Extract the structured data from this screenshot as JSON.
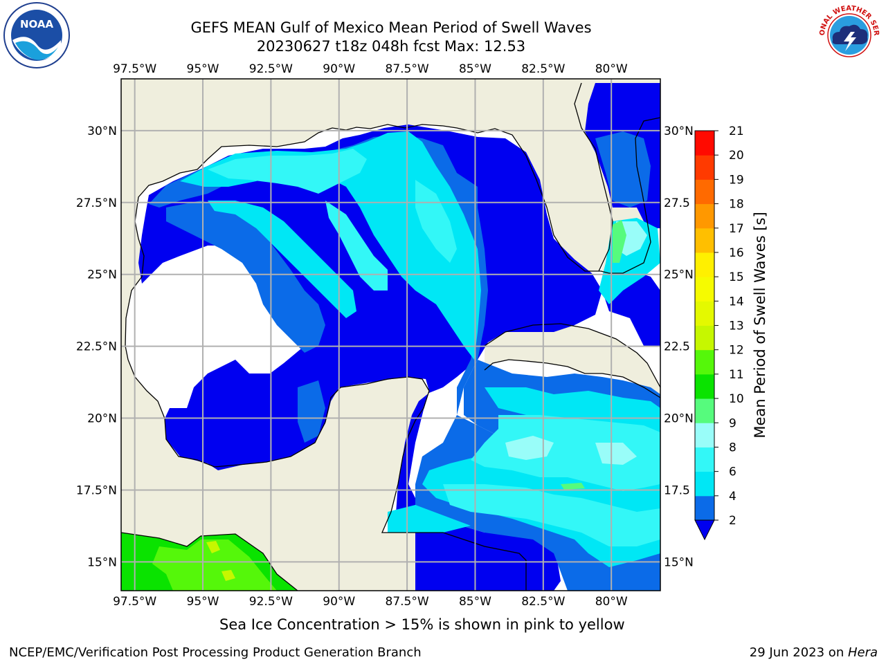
{
  "header": {
    "title_line1": "GEFS MEAN Gulf of Mexico Mean Period of Swell Waves",
    "title_line2": "20230627 t18z 048h fcst   Max: 12.53"
  },
  "map": {
    "lon_labels": [
      "97.5°W",
      "95°W",
      "92.5°W",
      "90°W",
      "87.5°W",
      "85°W",
      "82.5°W",
      "80°W"
    ],
    "lon_values": [
      -97.5,
      -95,
      -92.5,
      -90,
      -87.5,
      -85,
      -82.5,
      -80
    ],
    "lat_labels": [
      "30°N",
      "27.5°N",
      "25°N",
      "22.5°N",
      "20°N",
      "17.5°N",
      "15°N"
    ],
    "lat_values": [
      30,
      27.5,
      25,
      22.5,
      20,
      17.5,
      15
    ],
    "right_lat_labels": [
      "30°N",
      "27.5",
      "25°N",
      "22.5",
      "20°N",
      "17.5",
      "15°N"
    ],
    "extent": {
      "lon_min": -98,
      "lon_max": -78.2,
      "lat_min": 14,
      "lat_max": 31.8
    },
    "colors": {
      "land": "#efeedd",
      "grid": "#b0b0b0",
      "coast": "#000000"
    }
  },
  "colorbar": {
    "label": "Mean Period of Swell Waves [s]",
    "ticks": [
      "2",
      "4",
      "6",
      "8",
      "9",
      "10",
      "11",
      "12",
      "13",
      "14",
      "15",
      "16",
      "17",
      "18",
      "19",
      "20",
      "21"
    ],
    "bins": [
      {
        "range": "2-4",
        "color": "#0b6be8"
      },
      {
        "range": "4-6",
        "color": "#00e7f5"
      },
      {
        "range": "6-8",
        "color": "#33f7f7"
      },
      {
        "range": "8-9",
        "color": "#99fdf9"
      },
      {
        "range": "9-10",
        "color": "#56fb7d"
      },
      {
        "range": "10-11",
        "color": "#0ae300"
      },
      {
        "range": "11-12",
        "color": "#55f70a"
      },
      {
        "range": "12-13",
        "color": "#c6f700"
      },
      {
        "range": "13-14",
        "color": "#e4f900"
      },
      {
        "range": "14-15",
        "color": "#f6fb00"
      },
      {
        "range": "15-16",
        "color": "#fff000"
      },
      {
        "range": "16-17",
        "color": "#ffbf00"
      },
      {
        "range": "17-18",
        "color": "#ff9800"
      },
      {
        "range": "18-19",
        "color": "#ff6a00"
      },
      {
        "range": "19-20",
        "color": "#ff3a00"
      },
      {
        "range": "20-21",
        "color": "#ff0a00"
      }
    ],
    "under_color": "#0000f0"
  },
  "note": "Sea Ice Concentration > 15% is shown in pink to yellow",
  "footer": {
    "left": "NCEP/EMC/Verification Post Processing Product Generation Branch",
    "right_date": "29 Jun 2023 on ",
    "right_host": "Hera"
  },
  "logos": {
    "noaa": {
      "text": "NOAA",
      "icon": "noaa-logo"
    },
    "nws": {
      "text": "NATIONAL WEATHER SERVICE",
      "icon": "nws-logo"
    }
  }
}
